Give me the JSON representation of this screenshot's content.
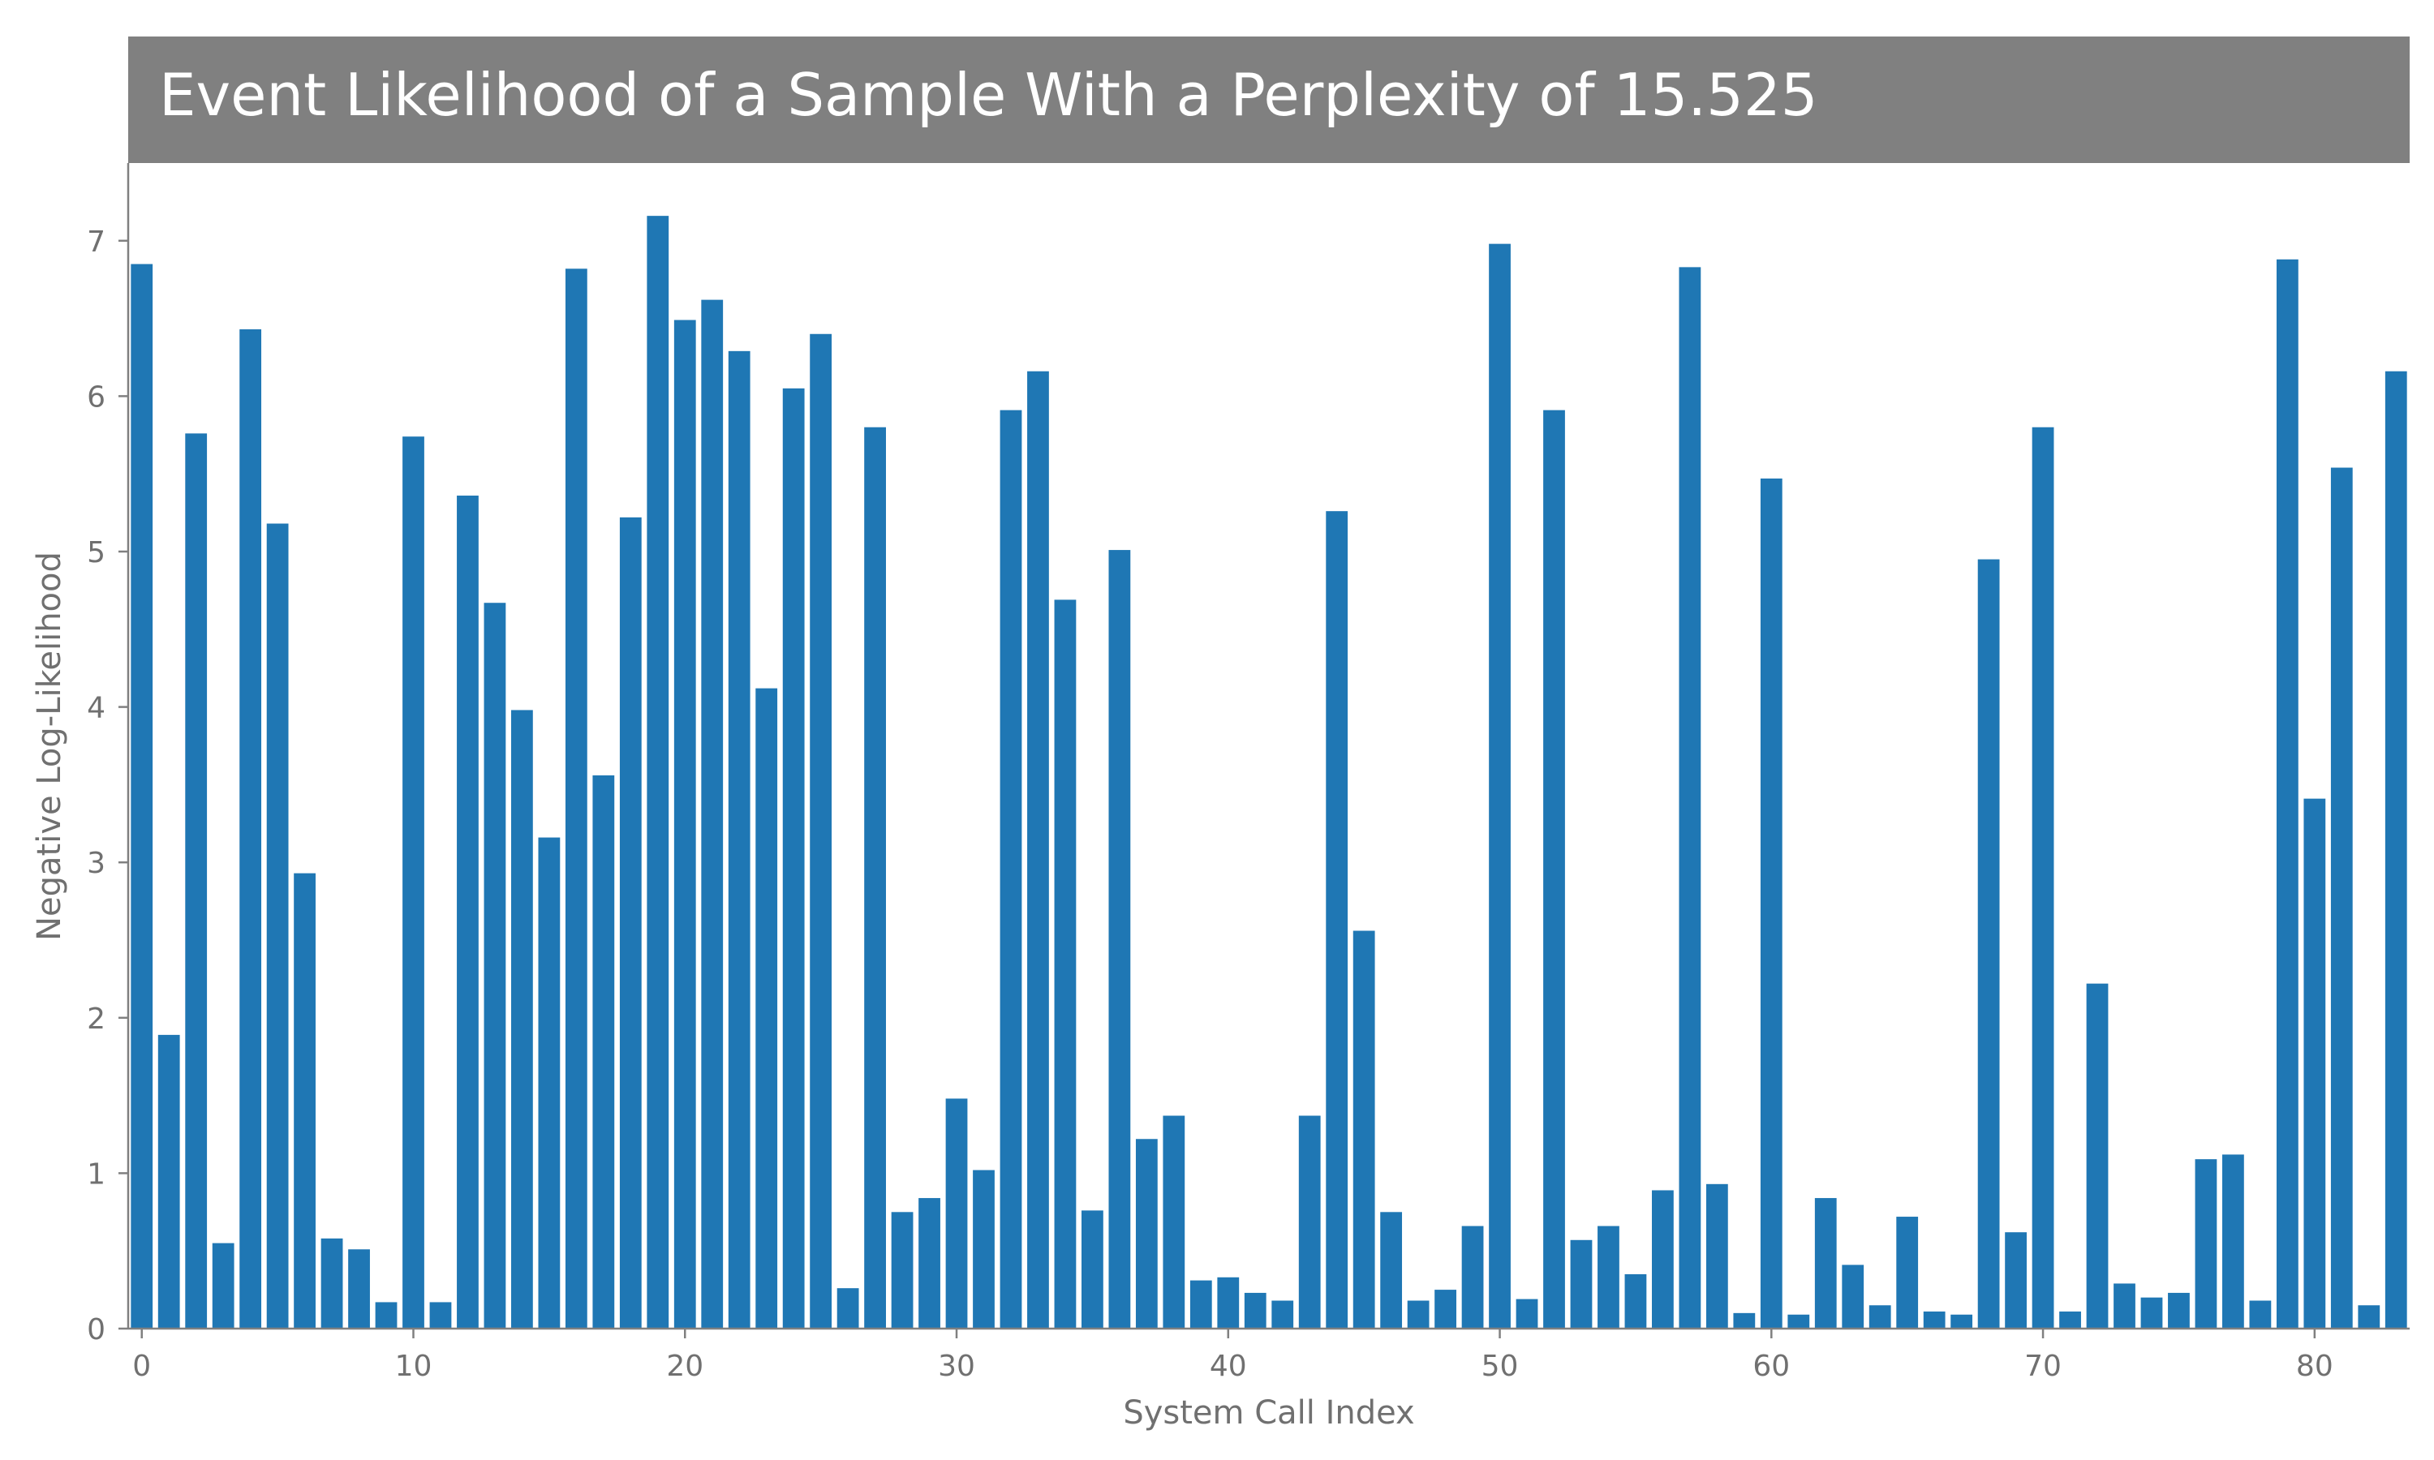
{
  "chart_data": {
    "type": "bar",
    "title": "Event Likelihood of a Sample With a Perplexity of 15.525",
    "xlabel": "System Call Index",
    "ylabel": "Negative Log-Likelihood",
    "xlim": [
      -0.5,
      83.5
    ],
    "ylim": [
      0,
      7.5
    ],
    "xticks": [
      0,
      10,
      20,
      30,
      40,
      50,
      60,
      70,
      80
    ],
    "yticks": [
      0,
      1,
      2,
      3,
      4,
      5,
      6,
      7
    ],
    "grid": false,
    "legend": "none",
    "colors": {
      "bar": "#1f77b4",
      "title_background": "#808080",
      "title_text": "#ffffff",
      "axis": "#808080",
      "tick_text": "#707070"
    },
    "x": [
      0,
      1,
      2,
      3,
      4,
      5,
      6,
      7,
      8,
      9,
      10,
      11,
      12,
      13,
      14,
      15,
      16,
      17,
      18,
      19,
      20,
      21,
      22,
      23,
      24,
      25,
      26,
      27,
      28,
      29,
      30,
      31,
      32,
      33,
      34,
      35,
      36,
      37,
      38,
      39,
      40,
      41,
      42,
      43,
      44,
      45,
      46,
      47,
      48,
      49,
      50,
      51,
      52,
      53,
      54,
      55,
      56,
      57,
      58,
      59,
      60,
      61,
      62,
      63,
      64,
      65,
      66,
      67,
      68,
      69,
      70,
      71,
      72,
      73,
      74,
      75,
      76,
      77,
      78,
      79,
      80,
      81,
      82,
      83
    ],
    "values": [
      6.85,
      1.89,
      5.76,
      0.55,
      6.43,
      5.18,
      2.93,
      0.58,
      0.51,
      0.17,
      5.74,
      0.17,
      5.36,
      4.67,
      3.98,
      3.16,
      6.82,
      3.56,
      5.22,
      7.16,
      6.49,
      6.62,
      6.29,
      4.12,
      6.05,
      6.4,
      0.26,
      5.8,
      0.75,
      0.84,
      1.48,
      1.02,
      5.91,
      6.16,
      4.69,
      0.76,
      5.01,
      1.22,
      1.37,
      0.31,
      0.33,
      0.23,
      0.18,
      1.37,
      5.26,
      2.56,
      0.75,
      0.18,
      0.25,
      0.66,
      6.98,
      0.19,
      5.91,
      0.57,
      0.66,
      0.35,
      0.89,
      6.83,
      0.93,
      0.1,
      5.47,
      0.09,
      0.84,
      0.41,
      0.15,
      0.72,
      0.11,
      0.09,
      4.95,
      0.62,
      5.8,
      0.11,
      2.22,
      0.29,
      0.2,
      0.23,
      1.09,
      1.12,
      0.18,
      6.88,
      3.41,
      5.54,
      0.15,
      6.16
    ]
  }
}
